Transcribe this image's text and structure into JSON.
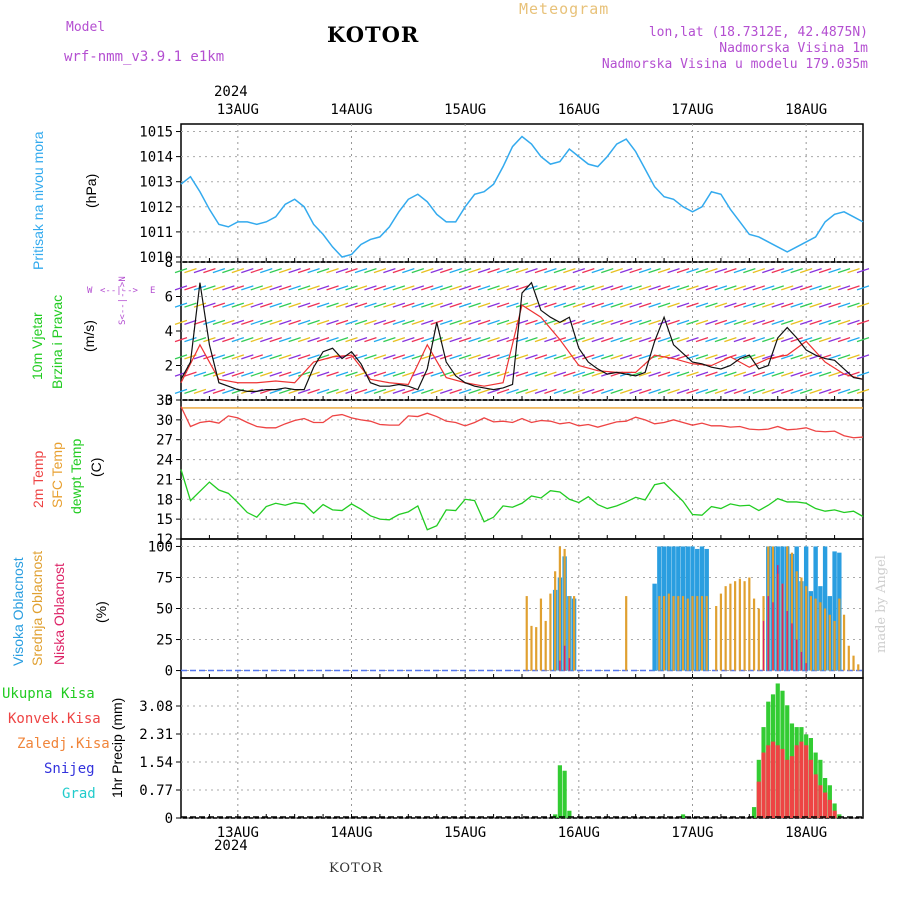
{
  "header": {
    "model_label": "Model",
    "model_name": "wrf-nmm_v3.9.1 e1km",
    "station": "KOTOR",
    "chart_kind": "Meteogram",
    "coords": "lon,lat (18.7312E, 42.4875N)",
    "elevation": "Nadmorska Visina 1m",
    "model_elevation": "Nadmorska Visina u modelu 179.035m"
  },
  "year_label": "2024",
  "credit": "made by Angel",
  "footer": "KOTOR",
  "wind_direction_legend": [
    "W",
    "E",
    "N",
    "S"
  ],
  "colors": {
    "pressure": "#33aaee",
    "temp2m": "#ee4444",
    "sfc_temp": "#e8a030",
    "dewpoint": "#22cc22",
    "high_cloud": "#2a9ee0",
    "mid_cloud": "#e0a030",
    "low_cloud": "#dd2266",
    "precip_total": "#33cc33",
    "precip_conv": "#ee4444",
    "wind_speed": "#111111",
    "gust": "#ee3333"
  },
  "chart_data": [
    {
      "type": "line",
      "panel": "pressure",
      "ylabel": [
        "Pritisak na nivou mora",
        "(hPa)"
      ],
      "ylim": [
        1009.8,
        1015.3
      ],
      "yticks": [
        1010,
        1011,
        1012,
        1013,
        1014,
        1015
      ],
      "x_ticks": [
        "13AUG",
        "14AUG",
        "15AUG",
        "16AUG",
        "17AUG",
        "18AUG"
      ],
      "x_range_hours": [
        0,
        144
      ],
      "series": [
        {
          "x": [
            0,
            2,
            4,
            6,
            8,
            10,
            12,
            14,
            16,
            18,
            20,
            22,
            24,
            26,
            28,
            30,
            32,
            34,
            36,
            38,
            40,
            42,
            44,
            46,
            48,
            50,
            52,
            54,
            56,
            58,
            60,
            62,
            64,
            66,
            68,
            70,
            72,
            74,
            76,
            78,
            80,
            82,
            84,
            86,
            88,
            90,
            92,
            94,
            96,
            98,
            100,
            102,
            104,
            106,
            108,
            110,
            112,
            114,
            116,
            118,
            120,
            122,
            124,
            126,
            128,
            130,
            132,
            134,
            136,
            138,
            140,
            142,
            144
          ],
          "values": [
            1012.9,
            1013.2,
            1012.6,
            1011.9,
            1011.3,
            1011.2,
            1011.4,
            1011.4,
            1011.3,
            1011.4,
            1011.6,
            1012.1,
            1012.3,
            1012.0,
            1011.3,
            1010.9,
            1010.4,
            1010.0,
            1010.1,
            1010.5,
            1010.7,
            1010.8,
            1011.2,
            1011.8,
            1012.3,
            1012.5,
            1012.2,
            1011.7,
            1011.4,
            1011.4,
            1012.0,
            1012.5,
            1012.6,
            1012.9,
            1013.6,
            1014.4,
            1014.8,
            1014.5,
            1014.0,
            1013.7,
            1013.8,
            1014.3,
            1014.0,
            1013.7,
            1013.6,
            1014.0,
            1014.5,
            1014.7,
            1014.2,
            1013.5,
            1012.8,
            1012.4,
            1012.3,
            1012.0,
            1011.8,
            1012.0,
            1012.6,
            1012.5,
            1011.9,
            1011.4,
            1010.9,
            1010.8,
            1010.6,
            1010.4,
            1010.2,
            1010.4,
            1010.6,
            1010.8,
            1011.4,
            1011.7,
            1011.8,
            1011.6,
            1011.4
          ]
        }
      ]
    },
    {
      "type": "line",
      "panel": "wind",
      "ylabel": [
        "10m Vjetar",
        "Brzina i Pravac",
        "(m/s)"
      ],
      "ylim": [
        0,
        8
      ],
      "yticks": [
        0,
        2,
        4,
        6,
        8
      ],
      "series": [
        {
          "name": "speed",
          "x": [
            0,
            2,
            4,
            6,
            8,
            10,
            12,
            14,
            16,
            18,
            20,
            22,
            24,
            26,
            28,
            30,
            32,
            34,
            36,
            38,
            40,
            42,
            44,
            46,
            48,
            50,
            52,
            54,
            56,
            58,
            60,
            62,
            64,
            66,
            68,
            70,
            72,
            74,
            76,
            78,
            80,
            82,
            84,
            86,
            88,
            90,
            92,
            94,
            96,
            98,
            100,
            102,
            104,
            106,
            108,
            110,
            112,
            114,
            116,
            118,
            120,
            122,
            124,
            126,
            128,
            130,
            132,
            134,
            136,
            138,
            140,
            142,
            144
          ],
          "values": [
            1.2,
            2.2,
            6.8,
            3.2,
            1.0,
            0.8,
            0.6,
            0.5,
            0.5,
            0.6,
            0.6,
            0.7,
            0.6,
            0.6,
            1.9,
            2.8,
            3.0,
            2.4,
            2.8,
            2.1,
            1.0,
            0.8,
            0.8,
            0.9,
            0.8,
            0.6,
            1.8,
            4.5,
            2.2,
            1.4,
            1.0,
            0.8,
            0.7,
            0.6,
            0.7,
            0.9,
            6.2,
            6.8,
            5.2,
            4.8,
            4.5,
            4.8,
            3.0,
            2.2,
            1.8,
            1.5,
            1.6,
            1.5,
            1.4,
            1.6,
            3.4,
            4.8,
            3.2,
            2.7,
            2.2,
            2.1,
            1.9,
            1.8,
            2.0,
            2.4,
            2.6,
            1.8,
            2.0,
            3.6,
            4.2,
            3.6,
            2.9,
            2.6,
            2.4,
            2.3,
            1.8,
            1.3,
            1.2
          ]
        },
        {
          "name": "gust",
          "x": [
            0,
            4,
            8,
            12,
            16,
            20,
            24,
            28,
            32,
            36,
            40,
            44,
            48,
            52,
            56,
            60,
            64,
            68,
            72,
            76,
            80,
            84,
            88,
            92,
            96,
            100,
            104,
            108,
            112,
            116,
            120,
            124,
            128,
            132,
            136,
            140,
            144
          ],
          "values": [
            1.0,
            3.2,
            1.2,
            1.0,
            1.0,
            1.1,
            1.0,
            2.2,
            2.5,
            2.6,
            1.2,
            1.0,
            0.9,
            3.2,
            1.3,
            1.0,
            0.8,
            1.0,
            5.5,
            4.8,
            3.5,
            2.0,
            1.7,
            1.6,
            1.6,
            2.6,
            2.4,
            2.1,
            2.0,
            2.5,
            1.9,
            2.4,
            2.6,
            3.4,
            2.2,
            1.5,
            1.2
          ]
        }
      ]
    },
    {
      "type": "line",
      "panel": "temperature",
      "ylabel": [
        "2m Temp",
        "SFC Temp",
        "dewpt Temp",
        "(C)"
      ],
      "ylim": [
        12,
        33
      ],
      "yticks": [
        12,
        15,
        18,
        21,
        24,
        27,
        30,
        33
      ],
      "series": [
        {
          "name": "2m Temp",
          "x": [
            0,
            2,
            4,
            6,
            8,
            10,
            12,
            14,
            16,
            18,
            20,
            22,
            24,
            26,
            28,
            30,
            32,
            34,
            36,
            38,
            40,
            42,
            44,
            46,
            48,
            50,
            52,
            54,
            56,
            58,
            60,
            62,
            64,
            66,
            68,
            70,
            72,
            74,
            76,
            78,
            80,
            82,
            84,
            86,
            88,
            90,
            92,
            94,
            96,
            98,
            100,
            102,
            104,
            106,
            108,
            110,
            112,
            114,
            116,
            118,
            120,
            122,
            124,
            126,
            128,
            130,
            132,
            134,
            136,
            138,
            140,
            142,
            144
          ],
          "values": [
            32.0,
            29.0,
            29.6,
            29.8,
            29.5,
            30.6,
            30.3,
            29.6,
            29.0,
            28.8,
            28.8,
            29.4,
            29.9,
            30.2,
            29.6,
            29.6,
            30.6,
            30.8,
            30.3,
            30.0,
            29.8,
            29.3,
            29.2,
            29.2,
            30.6,
            30.5,
            31.0,
            30.5,
            29.8,
            29.6,
            29.1,
            29.6,
            30.3,
            29.7,
            29.8,
            29.6,
            30.2,
            29.6,
            29.9,
            29.8,
            29.4,
            29.6,
            29.1,
            29.3,
            28.9,
            29.3,
            29.7,
            29.8,
            30.4,
            30.0,
            29.4,
            29.6,
            30.0,
            29.6,
            29.2,
            29.5,
            29.1,
            29.1,
            28.9,
            29.0,
            28.6,
            28.5,
            28.6,
            29.0,
            28.5,
            28.6,
            28.8,
            28.3,
            28.2,
            28.3,
            27.6,
            27.3,
            27.4
          ]
        },
        {
          "name": "SFC Temp",
          "x": [
            0,
            144
          ],
          "values": [
            31.8,
            31.8
          ]
        },
        {
          "name": "dewpt Temp",
          "x": [
            0,
            2,
            4,
            6,
            8,
            10,
            12,
            14,
            16,
            18,
            20,
            22,
            24,
            26,
            28,
            30,
            32,
            34,
            36,
            38,
            40,
            42,
            44,
            46,
            48,
            50,
            52,
            54,
            56,
            58,
            60,
            62,
            64,
            66,
            68,
            70,
            72,
            74,
            76,
            78,
            80,
            82,
            84,
            86,
            88,
            90,
            92,
            94,
            96,
            98,
            100,
            102,
            104,
            106,
            108,
            110,
            112,
            114,
            116,
            118,
            120,
            122,
            124,
            126,
            128,
            130,
            132,
            134,
            136,
            138,
            140,
            142,
            144
          ],
          "values": [
            22.5,
            17.8,
            19.2,
            20.6,
            19.4,
            18.9,
            17.5,
            16.0,
            15.3,
            16.9,
            17.4,
            17.1,
            17.5,
            17.3,
            15.9,
            17.2,
            16.4,
            16.3,
            17.3,
            16.5,
            15.5,
            15.0,
            14.9,
            15.7,
            16.1,
            17.0,
            13.4,
            14.0,
            16.4,
            16.3,
            18.0,
            17.8,
            14.6,
            15.3,
            17.0,
            16.8,
            17.4,
            18.5,
            18.2,
            19.3,
            19.1,
            18.0,
            17.5,
            18.4,
            17.2,
            16.6,
            17.0,
            17.6,
            18.3,
            17.9,
            20.2,
            20.5,
            19.1,
            17.7,
            15.7,
            15.6,
            16.9,
            16.6,
            17.3,
            17.0,
            17.1,
            16.3,
            17.1,
            18.1,
            17.6,
            17.6,
            17.4,
            16.6,
            16.2,
            16.4,
            16.0,
            16.2,
            15.4
          ]
        }
      ]
    },
    {
      "type": "bar",
      "panel": "cloud",
      "ylabel": [
        "Visoka Oblacnost",
        "Srednja Oblacnost",
        "Niska Oblacnost",
        "(%)"
      ],
      "ylim": [
        -6,
        106
      ],
      "yticks": [
        0,
        25,
        50,
        75,
        100
      ],
      "series": [
        {
          "name": "Visoka Oblacnost",
          "x": [
            79,
            80,
            81,
            82,
            83,
            100,
            101,
            102,
            103,
            104,
            105,
            106,
            107,
            108,
            109,
            110,
            111,
            124,
            125,
            126,
            127,
            128,
            129,
            130,
            131,
            132,
            133,
            134,
            135,
            136,
            137,
            138,
            139
          ],
          "values": [
            65,
            75,
            92,
            60,
            58,
            70,
            100,
            100,
            100,
            100,
            100,
            100,
            100,
            100,
            98,
            100,
            98,
            100,
            100,
            100,
            100,
            100,
            94,
            100,
            72,
            100,
            64,
            100,
            68,
            100,
            60,
            96,
            95
          ]
        },
        {
          "name": "Srednja Oblacnost",
          "x": [
            73,
            74,
            75,
            76,
            77,
            78,
            79,
            80,
            81,
            82,
            83,
            94,
            101,
            102,
            103,
            104,
            105,
            106,
            107,
            108,
            109,
            110,
            111,
            113,
            114,
            115,
            116,
            117,
            118,
            119,
            120,
            121,
            122,
            123,
            124,
            125,
            126,
            127,
            128,
            129,
            130,
            131,
            132,
            133,
            134,
            135,
            136,
            137,
            138,
            139,
            140,
            141,
            142,
            143
          ],
          "values": [
            60,
            36,
            35,
            58,
            40,
            62,
            80,
            100,
            98,
            60,
            60,
            60,
            60,
            60,
            62,
            60,
            60,
            60,
            58,
            60,
            60,
            60,
            60,
            52,
            62,
            68,
            70,
            72,
            74,
            72,
            75,
            58,
            50,
            60,
            100,
            100,
            78,
            70,
            100,
            95,
            80,
            75,
            68,
            60,
            58,
            55,
            50,
            45,
            40,
            58,
            45,
            20,
            12,
            5
          ]
        },
        {
          "name": "Niska Oblacnost",
          "x": [
            80,
            81,
            82,
            123,
            124,
            125,
            126,
            127,
            128,
            129,
            130,
            131,
            132
          ],
          "values": [
            8,
            20,
            10,
            40,
            60,
            55,
            85,
            70,
            48,
            38,
            25,
            15,
            6
          ]
        }
      ]
    },
    {
      "type": "bar",
      "panel": "precip",
      "ylabel": [
        "Ukupna Kisa",
        "Konvek.Kisa",
        "Zaledj.Kisa",
        "Snijeg",
        "Grad",
        "1hr Precip (mm)"
      ],
      "ylim": [
        0,
        3.85
      ],
      "yticks": [
        0,
        0.77,
        1.54,
        2.31,
        3.08
      ],
      "series": [
        {
          "name": "Ukupna Kisa",
          "x": [
            79,
            80,
            81,
            82,
            106,
            121,
            122,
            123,
            124,
            125,
            126,
            127,
            128,
            129,
            130,
            131,
            132,
            133,
            134,
            135,
            136,
            137,
            138,
            139
          ],
          "values": [
            0.1,
            1.45,
            1.3,
            0.2,
            0.1,
            0.3,
            1.6,
            2.5,
            3.2,
            3.4,
            3.7,
            3.5,
            3.1,
            2.6,
            2.5,
            2.5,
            2.3,
            2.2,
            1.8,
            1.6,
            1.1,
            0.9,
            0.4,
            0.1
          ]
        },
        {
          "name": "Konvek.Kisa",
          "x": [
            122,
            123,
            124,
            125,
            126,
            127,
            128,
            129,
            130,
            131,
            132,
            133,
            134,
            135,
            136,
            137,
            138
          ],
          "values": [
            1.0,
            1.8,
            2.0,
            2.1,
            2.0,
            1.9,
            1.6,
            1.7,
            2.0,
            2.1,
            2.0,
            1.6,
            1.2,
            0.9,
            0.7,
            0.5,
            0.2
          ]
        }
      ]
    }
  ]
}
